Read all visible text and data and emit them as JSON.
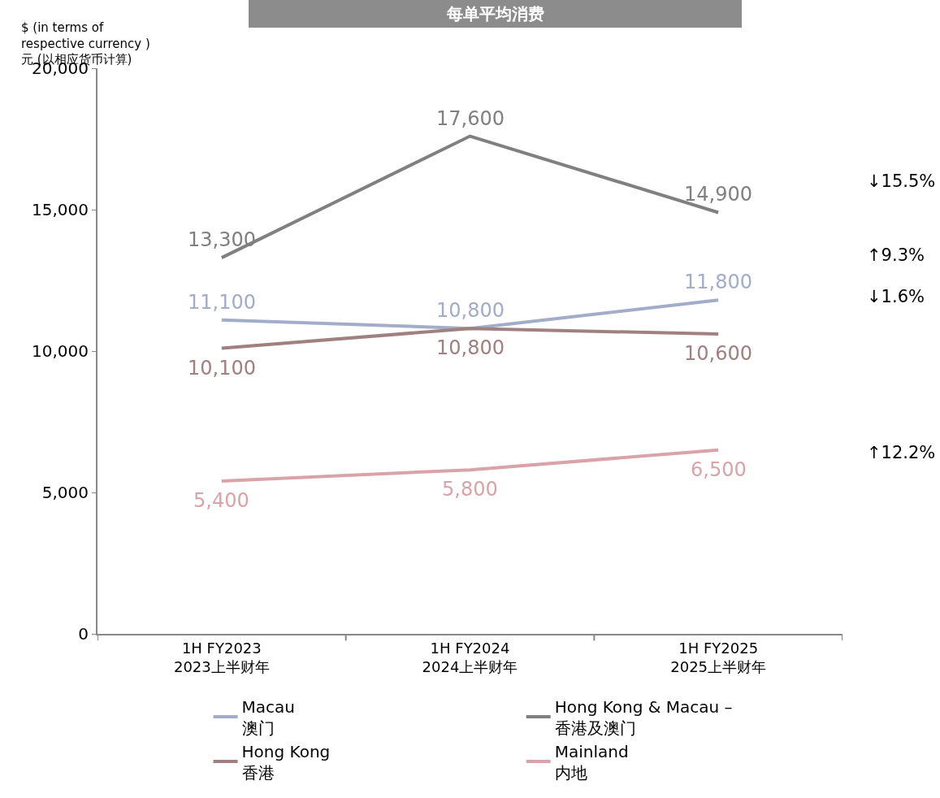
{
  "chart_data": {
    "type": "line",
    "title": "每单平均消费",
    "ylabel": "$ (in terms of\nrespective currency )\n元 (以相应货币计算)",
    "categories": [
      "1H FY2023\n2023上半财年",
      "1H FY2024\n2024上半财年",
      "1H FY2025\n2025上半财年"
    ],
    "series": [
      {
        "name": "Macau\n澳门",
        "color": "#a3acc9",
        "values": [
          11100,
          10800,
          11800
        ],
        "value_labels": [
          "11,100",
          "10,800",
          "11,800"
        ]
      },
      {
        "name": "Hong Kong & Macau –\n香港及澳门",
        "color": "#808080",
        "values": [
          13300,
          17600,
          14900
        ],
        "value_labels": [
          "13,300",
          "17,600",
          "14,900"
        ]
      },
      {
        "name": "Hong Kong\n香港",
        "color": "#a08080",
        "values": [
          10100,
          10800,
          10600
        ],
        "value_labels": [
          "10,100",
          "10,800",
          "10,600"
        ]
      },
      {
        "name": "Mainland\n内地",
        "color": "#d8a4aa",
        "values": [
          5400,
          5800,
          6500
        ],
        "value_labels": [
          "5,400",
          "5,800",
          "6,500"
        ]
      }
    ],
    "ylim": [
      0,
      20000
    ],
    "yticks": [
      0,
      {
        "value": 5000,
        "label": "5,000"
      },
      {
        "value": 10000,
        "label": "10,000"
      },
      {
        "value": 15000,
        "label": "15,000"
      },
      {
        "value": 20000,
        "label": "20,000"
      }
    ],
    "grid": false,
    "legend": "bottom",
    "marker": "none",
    "line_style": "solid",
    "annotations": [
      "↓15.5%",
      "↑9.3%",
      "↓1.6%",
      "↑12.2%"
    ]
  }
}
